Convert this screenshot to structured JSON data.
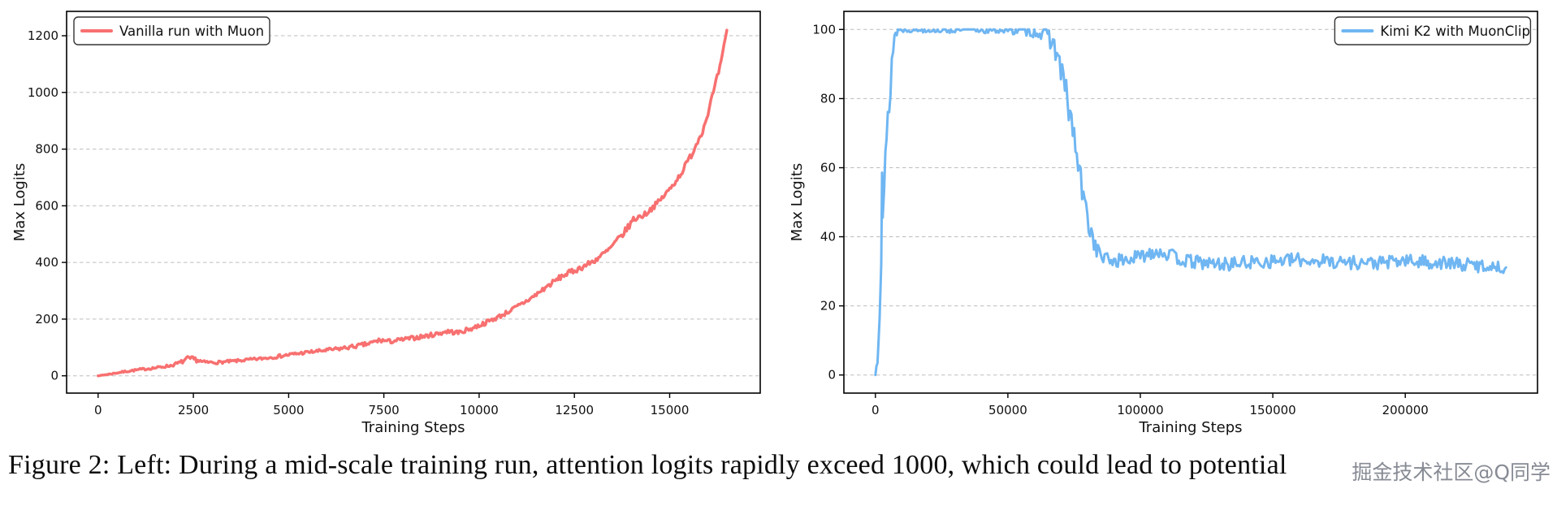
{
  "caption": {
    "text": "Figure 2: Left: During a mid-scale training run, attention logits rapidly exceed 1000, which could lead to potential"
  },
  "watermark": {
    "text": "掘金技术社区@Q同学",
    "color": "#6c727c"
  },
  "chart_data": [
    {
      "type": "line",
      "title": "",
      "xlabel": "Training Steps",
      "ylabel": "Max Logits",
      "legend": {
        "label": "Vanilla run with Muon",
        "position": "upper-left"
      },
      "color": "#f87070",
      "line_width": 3.5,
      "grid": "horizontal-dashed",
      "xlim": [
        -827,
        17377
      ],
      "ylim": [
        -61,
        1286
      ],
      "xticks": [
        0,
        2500,
        5000,
        7500,
        10000,
        12500,
        15000
      ],
      "yticks": [
        0,
        200,
        400,
        600,
        800,
        1000,
        1200
      ],
      "seed": 7,
      "clamp_min": 0,
      "points": [
        [
          0,
          0,
          0
        ],
        [
          300,
          6,
          2
        ],
        [
          700,
          15,
          3
        ],
        [
          1100,
          22,
          4
        ],
        [
          1500,
          28,
          4
        ],
        [
          1900,
          36,
          5
        ],
        [
          2150,
          46,
          7
        ],
        [
          2350,
          60,
          9
        ],
        [
          2550,
          58,
          9
        ],
        [
          2750,
          48,
          6
        ],
        [
          3100,
          47,
          5
        ],
        [
          3500,
          51,
          5
        ],
        [
          3900,
          56,
          5
        ],
        [
          4300,
          61,
          5
        ],
        [
          4700,
          68,
          6
        ],
        [
          5100,
          76,
          6
        ],
        [
          5500,
          83,
          6
        ],
        [
          5900,
          89,
          6
        ],
        [
          6300,
          95,
          7
        ],
        [
          6700,
          103,
          7
        ],
        [
          7100,
          113,
          8
        ],
        [
          7400,
          126,
          9
        ],
        [
          7650,
          121,
          8
        ],
        [
          8000,
          128,
          7
        ],
        [
          8400,
          136,
          8
        ],
        [
          8800,
          145,
          8
        ],
        [
          9150,
          157,
          9
        ],
        [
          9450,
          152,
          8
        ],
        [
          9800,
          167,
          8
        ],
        [
          10200,
          189,
          8
        ],
        [
          10600,
          214,
          8
        ],
        [
          11000,
          244,
          8
        ],
        [
          11400,
          277,
          9
        ],
        [
          11800,
          317,
          9
        ],
        [
          12200,
          354,
          10
        ],
        [
          12600,
          377,
          10
        ],
        [
          13000,
          404,
          10
        ],
        [
          13400,
          444,
          10
        ],
        [
          13800,
          504,
          12
        ],
        [
          14050,
          552,
          12
        ],
        [
          14350,
          570,
          10
        ],
        [
          14700,
          612,
          10
        ],
        [
          15000,
          658,
          10
        ],
        [
          15300,
          714,
          10
        ],
        [
          15600,
          788,
          12
        ],
        [
          15900,
          878,
          12
        ],
        [
          16150,
          1000,
          13
        ],
        [
          16350,
          1105,
          10
        ],
        [
          16500,
          1218,
          4
        ]
      ]
    },
    {
      "type": "line",
      "title": "",
      "xlabel": "Training Steps",
      "ylabel": "Max Logits",
      "legend": {
        "label": "Kimi K2 with MuonClip",
        "position": "upper-right"
      },
      "color": "#6fb6f2",
      "line_width": 3,
      "grid": "horizontal-dashed",
      "xlim": [
        -11900,
        249900
      ],
      "ylim": [
        -5.25,
        105.25
      ],
      "xticks": [
        0,
        50000,
        100000,
        150000,
        200000
      ],
      "yticks": [
        0,
        20,
        40,
        60,
        80,
        100
      ],
      "seed": 13,
      "clamp_min": 0,
      "clamp_max": 100,
      "points": [
        [
          0,
          0,
          0
        ],
        [
          800,
          6,
          3
        ],
        [
          1600,
          22,
          6
        ],
        [
          2200,
          40,
          8
        ],
        [
          2500,
          61,
          3
        ],
        [
          2750,
          47,
          5
        ],
        [
          3300,
          53,
          7
        ],
        [
          4200,
          66,
          7
        ],
        [
          5200,
          79,
          7
        ],
        [
          6200,
          91,
          5
        ],
        [
          7200,
          98,
          2
        ],
        [
          8500,
          100,
          1
        ],
        [
          12000,
          100,
          0.8
        ],
        [
          20000,
          100,
          0.9
        ],
        [
          30000,
          100,
          1.1
        ],
        [
          40000,
          100,
          1.2
        ],
        [
          48000,
          100,
          1.3
        ],
        [
          54000,
          100,
          1.6
        ],
        [
          58000,
          100,
          2
        ],
        [
          61000,
          99.5,
          2.2
        ],
        [
          64000,
          99,
          2.6
        ],
        [
          66500,
          97,
          3
        ],
        [
          68500,
          93,
          4
        ],
        [
          70500,
          87,
          4.5
        ],
        [
          72500,
          79,
          4.5
        ],
        [
          74500,
          71,
          4.5
        ],
        [
          76500,
          61,
          4.5
        ],
        [
          78500,
          51,
          4
        ],
        [
          80500,
          44,
          3.5
        ],
        [
          82500,
          38.5,
          3
        ],
        [
          84500,
          35,
          2.2
        ],
        [
          87000,
          33.5,
          2
        ],
        [
          91000,
          33,
          2
        ],
        [
          96000,
          33.5,
          2
        ],
        [
          101000,
          34.5,
          2
        ],
        [
          105000,
          36,
          2.2
        ],
        [
          109000,
          35.5,
          2.2
        ],
        [
          113000,
          34,
          2
        ],
        [
          117000,
          33,
          2
        ],
        [
          123000,
          32.5,
          2
        ],
        [
          131000,
          32,
          2
        ],
        [
          140000,
          32.5,
          2
        ],
        [
          150000,
          33,
          2
        ],
        [
          160000,
          33.3,
          2
        ],
        [
          170000,
          33,
          2
        ],
        [
          180000,
          32.6,
          2
        ],
        [
          190000,
          32.4,
          2
        ],
        [
          200000,
          33,
          2
        ],
        [
          210000,
          32.6,
          2
        ],
        [
          220000,
          32,
          2
        ],
        [
          230000,
          31.6,
          2
        ],
        [
          238000,
          31,
          1.5
        ]
      ]
    }
  ]
}
